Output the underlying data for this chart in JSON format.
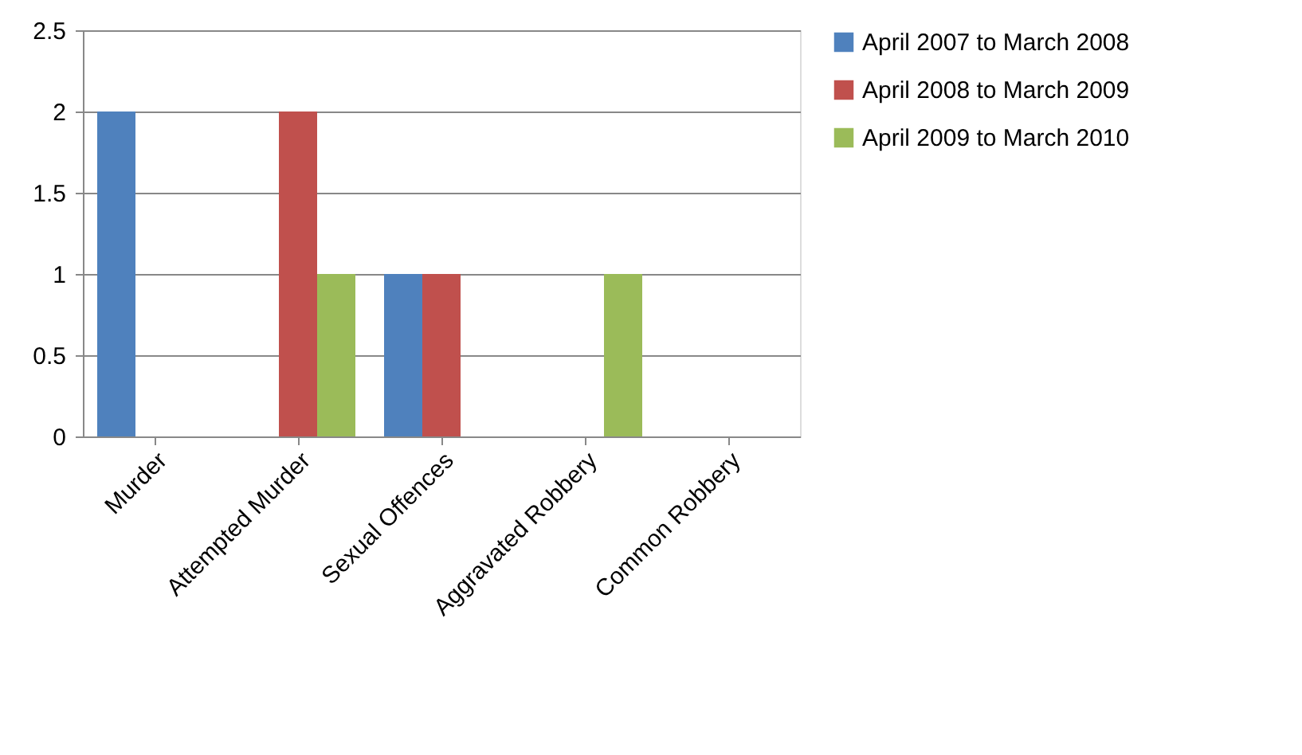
{
  "chart_data": {
    "type": "bar",
    "categories": [
      "Murder",
      "Attempted Murder",
      "Sexual Offences",
      "Aggravated Robbery",
      "Common Robbery"
    ],
    "series": [
      {
        "name": "April 2007 to March 2008",
        "color": "#4f81bd",
        "values": [
          2,
          0,
          1,
          0,
          0
        ]
      },
      {
        "name": "April 2008 to March 2009",
        "color": "#c0504d",
        "values": [
          0,
          2,
          1,
          0,
          0
        ]
      },
      {
        "name": "April 2009 to March 2010",
        "color": "#9bbb59",
        "values": [
          0,
          1,
          0,
          1,
          0
        ]
      }
    ],
    "ylim": [
      0,
      2.5
    ],
    "yticks": [
      0,
      0.5,
      1,
      1.5,
      2,
      2.5
    ],
    "grid": "y",
    "legend": "right"
  }
}
